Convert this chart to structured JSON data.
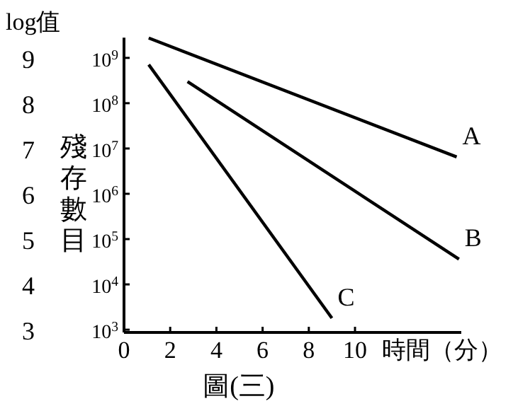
{
  "chart_data": {
    "type": "line",
    "xlabel": "時間（分）",
    "ylabel": "殘存數目",
    "y2label": "log值",
    "annotations": [
      "圖(三)"
    ],
    "series": [
      {
        "name": "A",
        "color": "#000000",
        "x": [
          1.07,
          14.4
        ],
        "values": [
          2750000000,
          6500000
        ]
      },
      {
        "name": "B",
        "color": "#000000",
        "x": [
          2.75,
          14.5
        ],
        "values": [
          300000000,
          36000
        ]
      },
      {
        "name": "C",
        "color": "#000000",
        "x": [
          1.07,
          9.0
        ],
        "values": [
          710000000,
          1800
        ]
      }
    ],
    "log": true,
    "xlim": [
      0,
      14.6
    ],
    "ylim": [
      870,
      2800000000
    ],
    "y2lim": [
      2.94,
      9.45
    ],
    "xticks": [
      0,
      2,
      4,
      6,
      8,
      10
    ],
    "yticks": [
      {
        "value": 1000,
        "label": "10$^{3}$"
      },
      {
        "value": 10000,
        "label": "10$^{4}$"
      },
      {
        "value": 100000,
        "label": "10$^{5}$"
      },
      {
        "value": 1000000,
        "label": "10$^{6}$"
      },
      {
        "value": 10000000,
        "label": "10$^{7}$"
      },
      {
        "value": 100000000,
        "label": "10$^{8}$"
      },
      {
        "value": 1000000000,
        "label": "10$^{9}$"
      }
    ],
    "y2ticks": [
      3,
      4,
      5,
      6,
      7,
      8,
      9
    ],
    "grid": false,
    "legend": false,
    "marker": "none",
    "line_style": "solid"
  }
}
